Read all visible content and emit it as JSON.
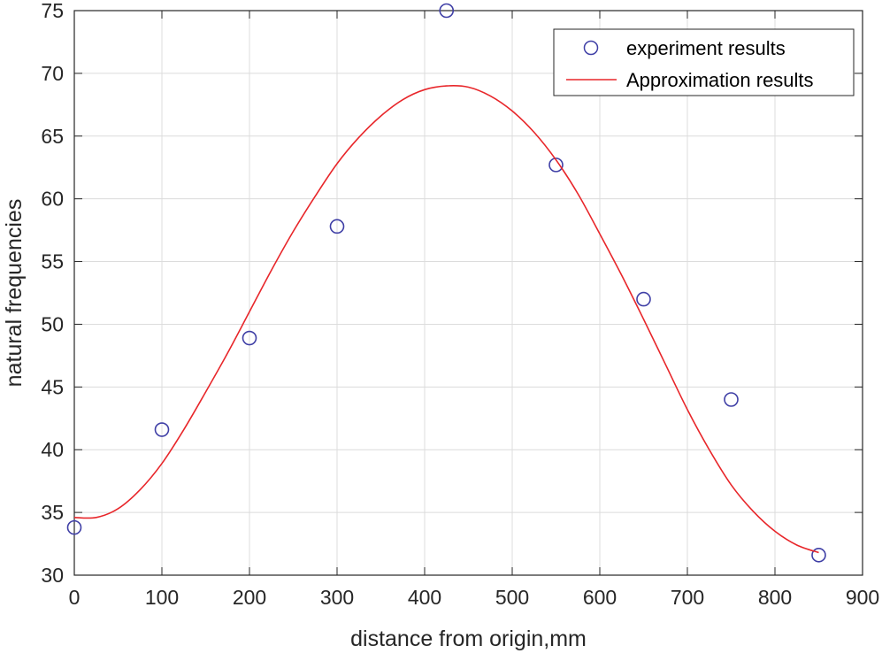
{
  "chart_data": {
    "type": "scatter",
    "title": "",
    "xlabel": "distance from origin,mm",
    "ylabel": "natural frequencies",
    "xlim": [
      0,
      900
    ],
    "ylim": [
      30,
      75
    ],
    "xticks": [
      0,
      100,
      200,
      300,
      400,
      500,
      600,
      700,
      800,
      900
    ],
    "yticks": [
      30,
      35,
      40,
      45,
      50,
      55,
      60,
      65,
      70,
      75
    ],
    "grid": true,
    "legend_position": "top-right",
    "series": [
      {
        "name": "experiment results",
        "kind": "scatter",
        "marker": "circle-open",
        "color": "#3f3fa6",
        "x": [
          0,
          100,
          200,
          300,
          425,
          550,
          650,
          750,
          850
        ],
        "y": [
          33.8,
          41.6,
          48.9,
          57.8,
          75.0,
          62.7,
          52.0,
          44.0,
          31.6
        ]
      },
      {
        "name": "Approximation results",
        "kind": "line",
        "color": "#e8262a",
        "x": [
          0,
          25,
          50,
          75,
          100,
          125,
          150,
          175,
          200,
          225,
          250,
          275,
          300,
          325,
          350,
          375,
          400,
          425,
          450,
          475,
          500,
          525,
          550,
          575,
          600,
          625,
          650,
          675,
          700,
          725,
          750,
          775,
          800,
          825,
          850
        ],
        "y": [
          34.6,
          34.6,
          35.3,
          36.8,
          38.9,
          41.6,
          44.6,
          47.7,
          51.0,
          54.3,
          57.4,
          60.2,
          62.8,
          64.9,
          66.6,
          67.9,
          68.7,
          69.0,
          68.9,
          68.2,
          67.0,
          65.3,
          63.1,
          60.4,
          57.2,
          53.9,
          50.4,
          46.8,
          43.2,
          40.0,
          37.2,
          35.1,
          33.5,
          32.4,
          31.8
        ]
      }
    ]
  }
}
